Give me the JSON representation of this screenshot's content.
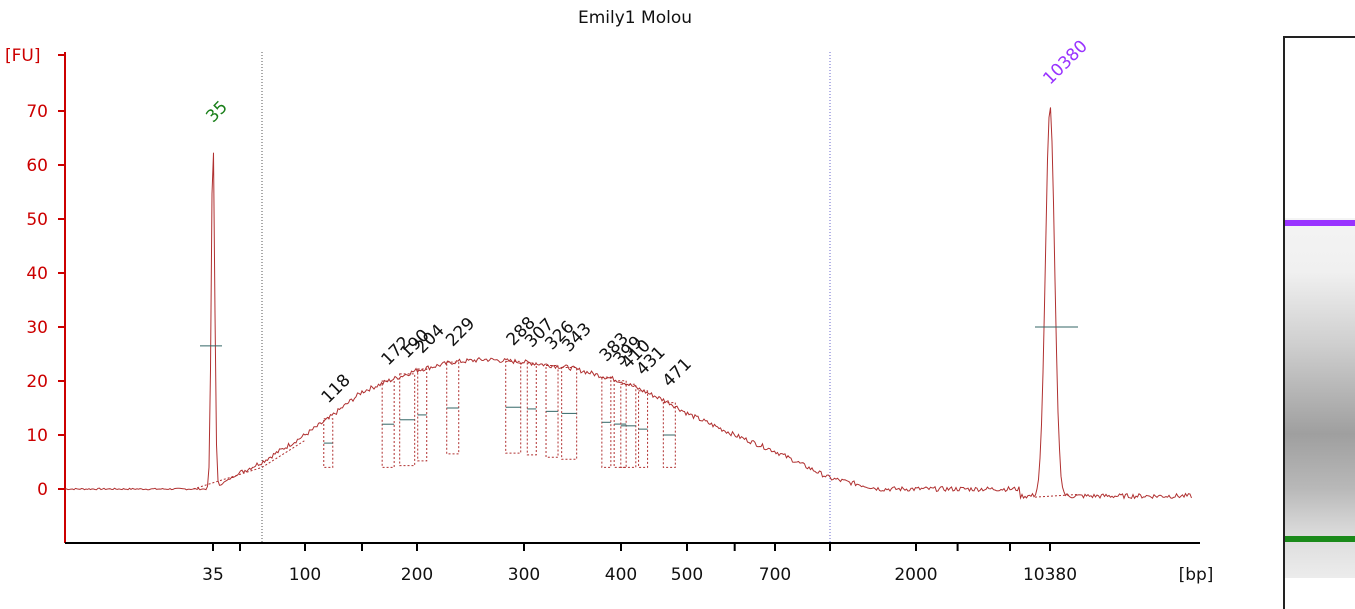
{
  "title": "Emily1 Molou",
  "colors": {
    "axis": "#cc0000",
    "trace": "#b03030",
    "lower_marker": "#1a7f1a",
    "upper_marker": "#9933ff",
    "peak_labels": "#111111"
  },
  "chart_data": {
    "type": "line",
    "title": "Emily1 Molou",
    "ylabel": "[FU]",
    "xlabel": "[bp]",
    "yticks": [
      0,
      10,
      20,
      30,
      40,
      50,
      60,
      70
    ],
    "ylim": [
      -10,
      80
    ],
    "x_tick_labels": [
      "35",
      "100",
      "200",
      "300",
      "400",
      "500",
      "700",
      "2000",
      "10380"
    ],
    "x_scale": "sizing ladder (non-linear)",
    "grid": false,
    "peak_labels": [
      "35",
      "118",
      "172",
      "190",
      "204",
      "229",
      "288",
      "307",
      "326",
      "343",
      "383",
      "399",
      "410",
      "431",
      "471",
      "10380"
    ],
    "lower_marker": {
      "label": "35",
      "height": 65
    },
    "upper_marker": {
      "label": "10380",
      "height": 72
    },
    "smear_profile": [
      {
        "bp": 35,
        "fu": 0
      },
      {
        "bp": 50,
        "fu": 3
      },
      {
        "bp": 70,
        "fu": 5
      },
      {
        "bp": 100,
        "fu": 10
      },
      {
        "bp": 118,
        "fu": 13
      },
      {
        "bp": 150,
        "fu": 18
      },
      {
        "bp": 172,
        "fu": 20
      },
      {
        "bp": 200,
        "fu": 22
      },
      {
        "bp": 229,
        "fu": 23.5
      },
      {
        "bp": 260,
        "fu": 24
      },
      {
        "bp": 300,
        "fu": 23.5
      },
      {
        "bp": 343,
        "fu": 22.5
      },
      {
        "bp": 400,
        "fu": 20
      },
      {
        "bp": 471,
        "fu": 16
      },
      {
        "bp": 500,
        "fu": 14
      },
      {
        "bp": 600,
        "fu": 10
      },
      {
        "bp": 700,
        "fu": 7
      },
      {
        "bp": 850,
        "fu": 2
      },
      {
        "bp": 1500,
        "fu": 0
      },
      {
        "bp": 2000,
        "fu": 0
      },
      {
        "bp": 5000,
        "fu": -1
      },
      {
        "bp": 10380,
        "fu": -1
      }
    ]
  },
  "gel": {
    "upper_band_color": "#9933ff",
    "lower_band_color": "#1a8a1a"
  }
}
